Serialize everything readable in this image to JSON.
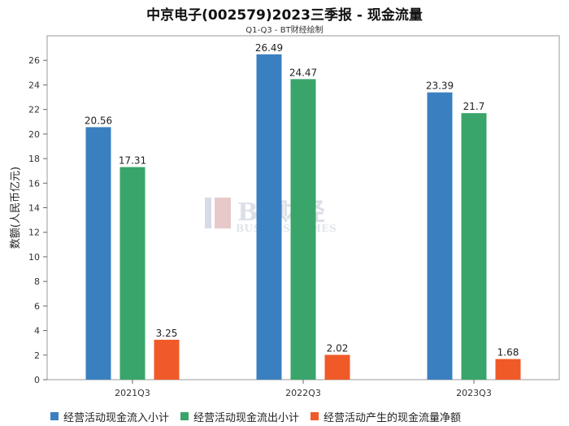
{
  "title": "中京电子(002579)2023三季报 - 现金流量",
  "subtitle": "Q1-Q3 - BT财经绘制",
  "watermark": {
    "main": "BT财经",
    "sub": "BUSINESSTIMES"
  },
  "chart_data": {
    "type": "bar",
    "categories": [
      "2021Q3",
      "2022Q3",
      "2023Q3"
    ],
    "series": [
      {
        "name": "经营活动现金流入小计",
        "values": [
          20.56,
          26.49,
          23.39
        ],
        "color": "#3a80c0"
      },
      {
        "name": "经营活动现金流出小计",
        "values": [
          17.31,
          24.47,
          21.7
        ],
        "color": "#3aa56a"
      },
      {
        "name": "经营活动产生的现金流量净额",
        "values": [
          3.25,
          2.02,
          1.68
        ],
        "color": "#f05a28"
      }
    ],
    "ylabel": "数额(人民币亿元)",
    "xlabel": "",
    "ylim": [
      0,
      28
    ],
    "yticks": [
      0,
      2,
      4,
      6,
      8,
      10,
      12,
      14,
      16,
      18,
      20,
      22,
      24,
      26
    ],
    "grid": false,
    "legend_position": "bottom-left"
  }
}
